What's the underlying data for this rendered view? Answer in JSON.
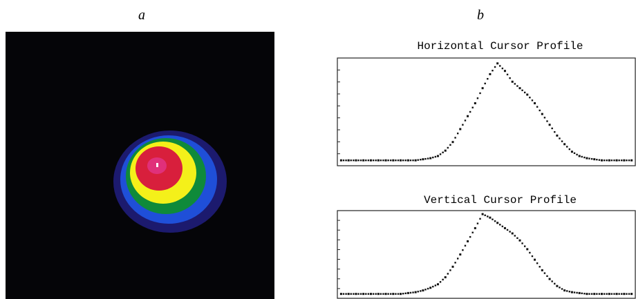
{
  "panels": {
    "left_label": "a",
    "right_label": "b"
  },
  "chart_data": [
    {
      "type": "line",
      "title": "Horizontal Cursor Profile",
      "color": "#111111",
      "ylim": [
        0,
        100
      ],
      "categories": [
        null,
        null,
        null,
        null,
        null,
        null,
        null,
        null,
        null,
        null,
        null,
        null,
        null,
        null,
        null,
        null,
        null,
        null,
        null,
        null,
        null,
        null,
        null,
        null,
        null,
        null,
        null,
        null,
        null,
        null,
        null,
        null,
        null,
        null,
        null,
        null,
        null,
        null,
        null,
        null
      ],
      "values": [
        5,
        5,
        5,
        5,
        5,
        5,
        5,
        5,
        5,
        5,
        5,
        6,
        7,
        9,
        14,
        22,
        34,
        46,
        58,
        72,
        85,
        95,
        88,
        78,
        72,
        66,
        58,
        48,
        38,
        28,
        20,
        13,
        9,
        7,
        6,
        5,
        5,
        5,
        5,
        5
      ]
    },
    {
      "type": "line",
      "title": "Vertical Cursor Profile",
      "color": "#111111",
      "ylim": [
        0,
        100
      ],
      "categories": [
        null,
        null,
        null,
        null,
        null,
        null,
        null,
        null,
        null,
        null,
        null,
        null,
        null,
        null,
        null,
        null,
        null,
        null,
        null,
        null,
        null,
        null,
        null,
        null,
        null,
        null,
        null,
        null,
        null,
        null,
        null,
        null,
        null,
        null,
        null,
        null,
        null,
        null,
        null,
        null
      ],
      "values": [
        5,
        5,
        5,
        5,
        5,
        5,
        5,
        5,
        5,
        6,
        7,
        9,
        12,
        16,
        24,
        36,
        50,
        65,
        80,
        96,
        92,
        86,
        80,
        74,
        66,
        56,
        44,
        32,
        22,
        14,
        9,
        7,
        6,
        5,
        5,
        5,
        5,
        5,
        5,
        5
      ]
    }
  ]
}
